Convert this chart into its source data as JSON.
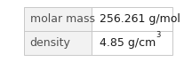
{
  "rows": [
    {
      "label": "molar mass",
      "value": "256.261 g/mol",
      "superscript": null
    },
    {
      "label": "density",
      "value": "4.85 g/cm",
      "superscript": "3"
    }
  ],
  "background_color": "#ffffff",
  "left_cell_bg": "#f2f2f2",
  "border_color": "#c8c8c8",
  "label_color": "#505050",
  "value_color": "#1a1a1a",
  "label_fontsize": 9.0,
  "value_fontsize": 9.0,
  "sup_fontsize": 6.0,
  "col_split": 0.455
}
